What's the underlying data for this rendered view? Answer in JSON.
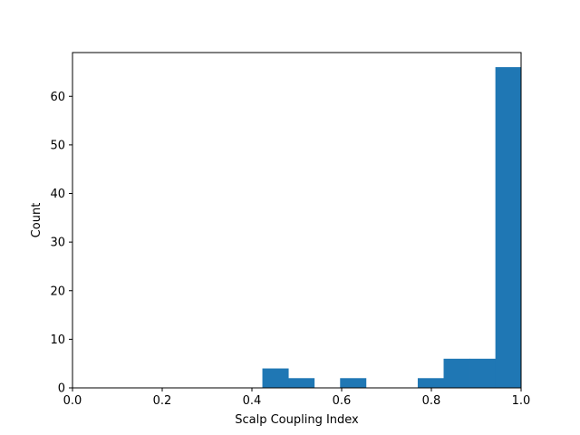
{
  "chart_data": {
    "type": "bar",
    "title": "",
    "xlabel": "Scalp Coupling Index",
    "ylabel": "Count",
    "xlim": [
      0.0,
      1.0
    ],
    "ylim": [
      0,
      69
    ],
    "x_ticks": [
      0.0,
      0.2,
      0.4,
      0.6,
      0.8,
      1.0
    ],
    "x_tick_labels": [
      "0.0",
      "0.2",
      "0.4",
      "0.6",
      "0.8",
      "1.0"
    ],
    "y_ticks": [
      0,
      10,
      20,
      30,
      40,
      50,
      60
    ],
    "y_tick_labels": [
      "0",
      "10",
      "20",
      "30",
      "40",
      "50",
      "60"
    ],
    "bins": [
      {
        "x0": 0.4233,
        "x1": 0.4811,
        "value": 4
      },
      {
        "x0": 0.4811,
        "x1": 0.5388,
        "value": 2
      },
      {
        "x0": 0.5388,
        "x1": 0.5965,
        "value": 0
      },
      {
        "x0": 0.5965,
        "x1": 0.6542,
        "value": 2
      },
      {
        "x0": 0.6542,
        "x1": 0.7119,
        "value": 0
      },
      {
        "x0": 0.7119,
        "x1": 0.7696,
        "value": 0
      },
      {
        "x0": 0.7696,
        "x1": 0.8273,
        "value": 2
      },
      {
        "x0": 0.8273,
        "x1": 0.885,
        "value": 6
      },
      {
        "x0": 0.885,
        "x1": 0.9427,
        "value": 6
      },
      {
        "x0": 0.9427,
        "x1": 1.0,
        "value": 66
      }
    ],
    "bar_color": "#1f77b4",
    "grid": false,
    "legend": "none"
  }
}
